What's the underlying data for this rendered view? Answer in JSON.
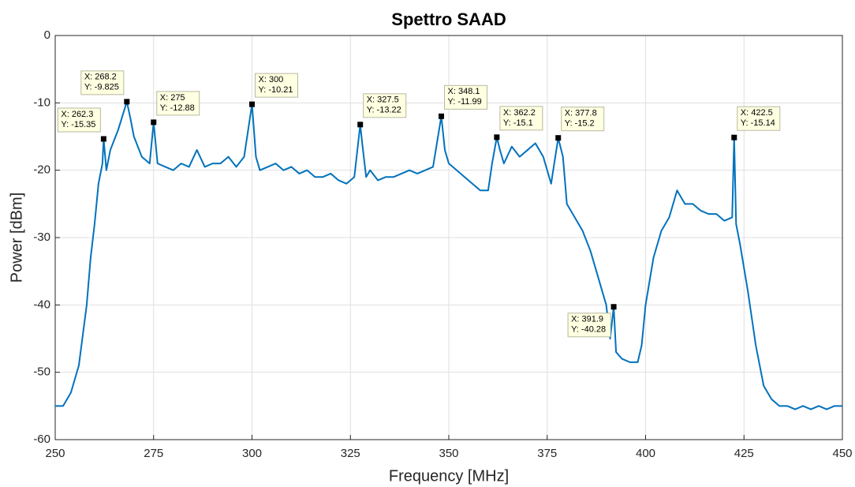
{
  "chart_data": {
    "type": "line",
    "title": "Spettro SAAD",
    "xlabel": "Frequency [MHz]",
    "ylabel": "Power [dBm]",
    "xlim": [
      250,
      450
    ],
    "ylim": [
      -60,
      0
    ],
    "xticks": [
      250,
      275,
      300,
      325,
      350,
      375,
      400,
      425,
      450
    ],
    "yticks": [
      -60,
      -50,
      -40,
      -30,
      -20,
      -10,
      0
    ],
    "grid": true,
    "series": [
      {
        "color": "#0072bd",
        "x": [
          250,
          252,
          254,
          256,
          258,
          259,
          260,
          261,
          262,
          262.3,
          263,
          264,
          266,
          268.2,
          269,
          270,
          272,
          274,
          275,
          276,
          278,
          280,
          282,
          284,
          286,
          288,
          290,
          292,
          294,
          296,
          298,
          300,
          301,
          302,
          304,
          306,
          308,
          310,
          312,
          314,
          316,
          318,
          320,
          322,
          324,
          326,
          327.5,
          328,
          329,
          330,
          332,
          334,
          336,
          338,
          340,
          342,
          344,
          346,
          348.1,
          349,
          350,
          352,
          354,
          356,
          358,
          360,
          361,
          362.2,
          363,
          364,
          366,
          368,
          370,
          372,
          374,
          376,
          377.8,
          379,
          380,
          382,
          384,
          386,
          388,
          390,
          391,
          391.9,
          392.5,
          394,
          396,
          398,
          399,
          400,
          402,
          404,
          406,
          408,
          410,
          412,
          414,
          416,
          418,
          420,
          422,
          422.5,
          423,
          424,
          426,
          428,
          430,
          432,
          434,
          436,
          438,
          440,
          442,
          444,
          446,
          448,
          450
        ],
        "values": [
          -55,
          -55,
          -53,
          -49,
          -40,
          -33,
          -28,
          -22,
          -19,
          -15.35,
          -20,
          -17,
          -14,
          -9.825,
          -12,
          -15,
          -18,
          -19,
          -12.88,
          -19,
          -19.5,
          -20,
          -19,
          -19.5,
          -17,
          -19.5,
          -19,
          -19,
          -18,
          -19.5,
          -18,
          -10.21,
          -18,
          -20,
          -19.5,
          -19,
          -20,
          -19.5,
          -20.5,
          -20,
          -21,
          -21,
          -20.5,
          -21.5,
          -22,
          -21,
          -13.22,
          -16,
          -21,
          -20,
          -21.5,
          -21,
          -21,
          -20.5,
          -20,
          -20.5,
          -20,
          -19.5,
          -11.99,
          -17,
          -19,
          -20,
          -21,
          -22,
          -23,
          -23,
          -19,
          -15.1,
          -17,
          -19,
          -16.5,
          -18,
          -17,
          -16,
          -18,
          -22,
          -15.2,
          -18,
          -25,
          -27,
          -29,
          -32,
          -36,
          -40,
          -45,
          -40.28,
          -47,
          -48,
          -48.5,
          -48.5,
          -46,
          -40,
          -33,
          -29,
          -27,
          -23,
          -25,
          -25,
          -26,
          -26.5,
          -26.5,
          -27.5,
          -27,
          -15.14,
          -28,
          -31,
          -38,
          -46,
          -52,
          -54,
          -55,
          -55,
          -55.5,
          -55,
          -55.5,
          -55,
          -55.5,
          -55,
          -55
        ]
      }
    ],
    "annotations": [
      {
        "x": 262.3,
        "y": -15.35,
        "text": [
          "X: 262.3",
          "Y: -15.35"
        ],
        "position": "upper left"
      },
      {
        "x": 268.2,
        "y": -9.825,
        "text": [
          "X: 268.2",
          "Y: -9.825"
        ],
        "position": "upper left"
      },
      {
        "x": 275,
        "y": -12.88,
        "text": [
          "X: 275",
          "Y: -12.88"
        ],
        "position": "upper right"
      },
      {
        "x": 300,
        "y": -10.21,
        "text": [
          "X: 300",
          "Y: -10.21"
        ],
        "position": "upper right"
      },
      {
        "x": 327.5,
        "y": -13.22,
        "text": [
          "X: 327.5",
          "Y: -13.22"
        ],
        "position": "upper right"
      },
      {
        "x": 348.1,
        "y": -11.99,
        "text": [
          "X: 348.1",
          "Y: -11.99"
        ],
        "position": "upper right"
      },
      {
        "x": 362.2,
        "y": -15.1,
        "text": [
          "X: 362.2",
          "Y: -15.1"
        ],
        "position": "upper right"
      },
      {
        "x": 377.8,
        "y": -15.2,
        "text": [
          "X: 377.8",
          "Y: -15.2"
        ],
        "position": "upper right"
      },
      {
        "x": 391.9,
        "y": -40.28,
        "text": [
          "X: 391.9",
          "Y: -40.28"
        ],
        "position": "lower left"
      },
      {
        "x": 422.5,
        "y": -15.14,
        "text": [
          "X: 422.5",
          "Y: -15.14"
        ],
        "position": "upper right"
      }
    ]
  }
}
